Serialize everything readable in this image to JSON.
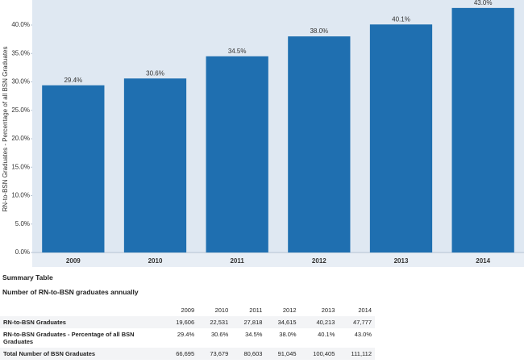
{
  "chart_data": {
    "type": "bar",
    "y_label": "RN-to-BSN Graduates - Percentage of all BSN Graduates",
    "categories": [
      "2009",
      "2010",
      "2011",
      "2012",
      "2013",
      "2014"
    ],
    "values": [
      29.4,
      30.6,
      34.5,
      38.0,
      40.1,
      43.0
    ],
    "value_labels": [
      "29.4%",
      "30.6%",
      "34.5%",
      "38.0%",
      "40.1%",
      "43.0%"
    ],
    "color": "#1f6fb0",
    "ylim": [
      0,
      44.4
    ],
    "yticks": [
      {
        "value": 0,
        "label": "0.0%"
      },
      {
        "value": 5,
        "label": "5.0%"
      },
      {
        "value": 10,
        "label": "10.0%"
      },
      {
        "value": 15,
        "label": "15.0%"
      },
      {
        "value": 20,
        "label": "20.0%"
      },
      {
        "value": 25,
        "label": "25.0%"
      },
      {
        "value": 30,
        "label": "30.0%"
      },
      {
        "value": 35,
        "label": "35.0%"
      },
      {
        "value": 40,
        "label": "40.0%"
      }
    ],
    "grid": false
  },
  "summary_table": {
    "title": "Summary Table",
    "subtitle": "Number of RN-to-BSN graduates annually",
    "header": [
      "2009",
      "2010",
      "2011",
      "2012",
      "2013",
      "2014"
    ],
    "rows": [
      [
        "RN-to-BSN Graduates",
        "19,606",
        "22,531",
        "27,818",
        "34,615",
        "40,213",
        "47,777"
      ],
      [
        "RN-to-BSN Graduates - Percentage of all BSN Graduates",
        "29.4%",
        "30.6%",
        "34.5%",
        "38.0%",
        "40.1%",
        "43.0%"
      ],
      [
        "Total Number of BSN Graduates",
        "66,695",
        "73,679",
        "80,603",
        "91,045",
        "100,405",
        "111,112"
      ]
    ]
  }
}
